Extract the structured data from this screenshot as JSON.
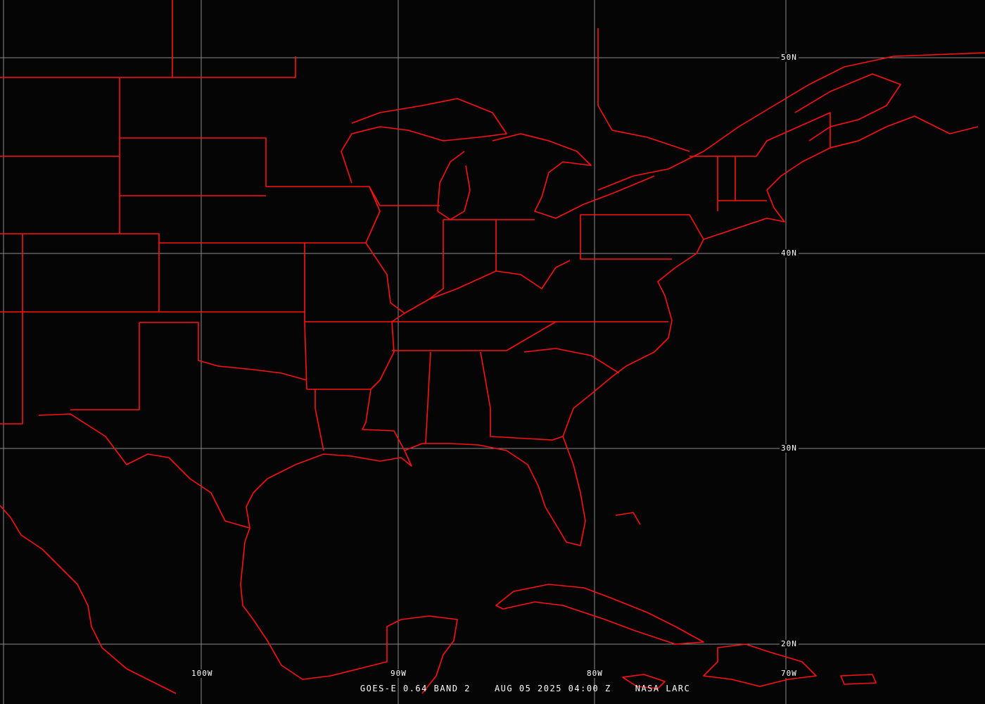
{
  "colors": {
    "background": "#000000",
    "boundaries": "#ff1010",
    "grid": "#8a8a8a",
    "text": "#ffffff"
  },
  "grid": {
    "longitudes": [
      "100W",
      "90W",
      "80W",
      "70W"
    ],
    "latitudes": [
      "50N",
      "40N",
      "30N",
      "20N"
    ]
  },
  "caption": {
    "product": "GOES-E 0.64 BAND 2",
    "datetime": "AUG 05 2025 04:00 Z",
    "source": "NASA LARC"
  }
}
